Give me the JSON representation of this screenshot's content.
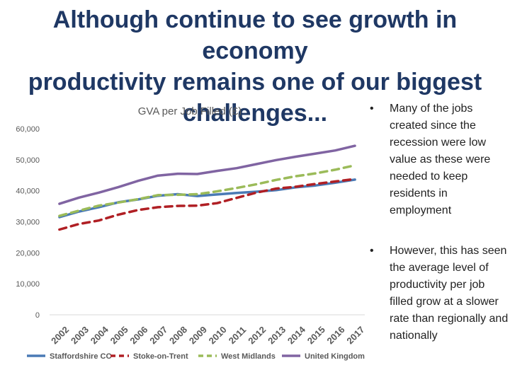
{
  "slide": {
    "title": "Although continue to see growth in economy\nproductivity remains one of our biggest\nchallenges...",
    "bullets": [
      "Many of the jobs created since the recession were low value as these were needed to keep residents in employment",
      "However, this has seen the average level of productivity per job filled grow at a slower rate than regionally and nationally"
    ],
    "bullet_symbol": "•"
  },
  "chart_data": {
    "type": "line",
    "title": "GVA per Job Filled (£)",
    "xlabel": "",
    "ylabel": "",
    "categories": [
      "2002",
      "2003",
      "2004",
      "2005",
      "2006",
      "2007",
      "2008",
      "2009",
      "2010",
      "2011",
      "2012",
      "2013",
      "2014",
      "2015",
      "2016",
      "2017"
    ],
    "ylim": [
      0,
      60000
    ],
    "yticks": [
      0,
      10000,
      20000,
      30000,
      40000,
      50000,
      60000
    ],
    "ytick_labels": [
      "0",
      "10,000",
      "20,000",
      "30,000",
      "40,000",
      "50,000",
      "60,000"
    ],
    "grid": false,
    "legend_position": "bottom",
    "series": [
      {
        "name": "Staffordshire CC",
        "color": "#4a7ab5",
        "dash": "solid",
        "values": [
          31500,
          33300,
          34700,
          36300,
          37200,
          38400,
          38900,
          38300,
          38800,
          39300,
          39700,
          40200,
          41100,
          41700,
          42600,
          43600
        ]
      },
      {
        "name": "Stoke-on-Trent",
        "color": "#b01f24",
        "dash": "dashed",
        "values": [
          27500,
          29300,
          30400,
          32300,
          33800,
          34700,
          35100,
          35200,
          36000,
          37700,
          39400,
          40700,
          41300,
          42200,
          43000,
          43800
        ]
      },
      {
        "name": "West Midlands",
        "color": "#9bbb59",
        "dash": "dashed",
        "values": [
          31900,
          33600,
          35200,
          36200,
          37300,
          38600,
          38700,
          38900,
          39800,
          40900,
          42100,
          43500,
          44700,
          45600,
          46800,
          48200
        ]
      },
      {
        "name": "United Kingdom",
        "color": "#8064a2",
        "dash": "solid",
        "values": [
          35800,
          37800,
          39400,
          41200,
          43200,
          44900,
          45500,
          45400,
          46400,
          47300,
          48600,
          49900,
          51000,
          52000,
          53000,
          54500
        ]
      }
    ]
  }
}
